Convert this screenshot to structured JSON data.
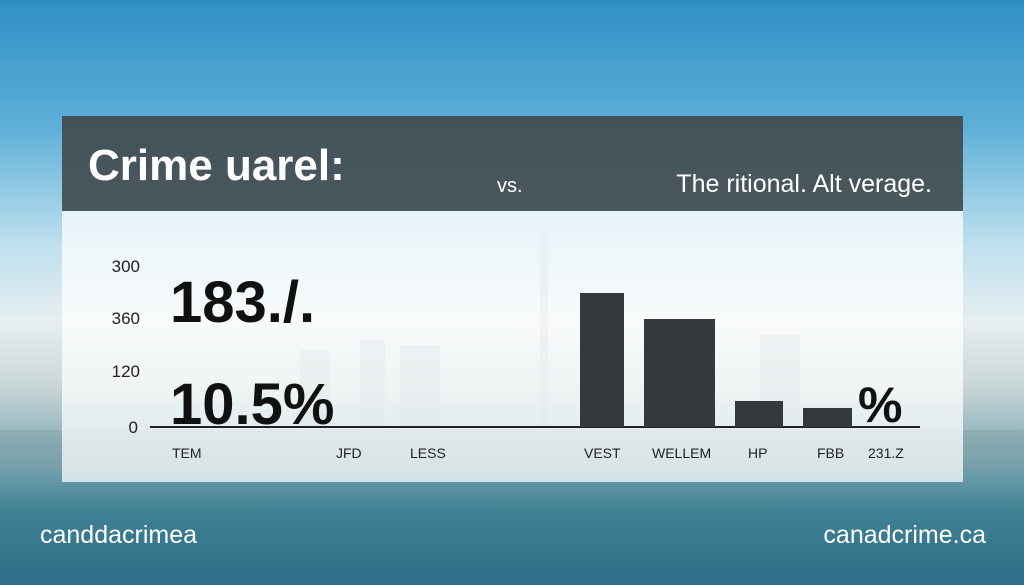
{
  "header": {
    "title": "Crime uarel:",
    "vs": "vs.",
    "subtitle": "The ritional. Alt verage."
  },
  "panel": {
    "axis_labels": [
      "300",
      "360",
      "120",
      "0"
    ],
    "figures": [
      "183./.",
      "10.5%",
      "%"
    ],
    "x_labels": [
      "TEM",
      "JFD",
      "LESS",
      "VEST",
      "WELLEM",
      "HP",
      "FBB",
      "231.Z"
    ]
  },
  "footer": {
    "left": "canddacrimea",
    "right": "canadcrime.ca"
  }
}
